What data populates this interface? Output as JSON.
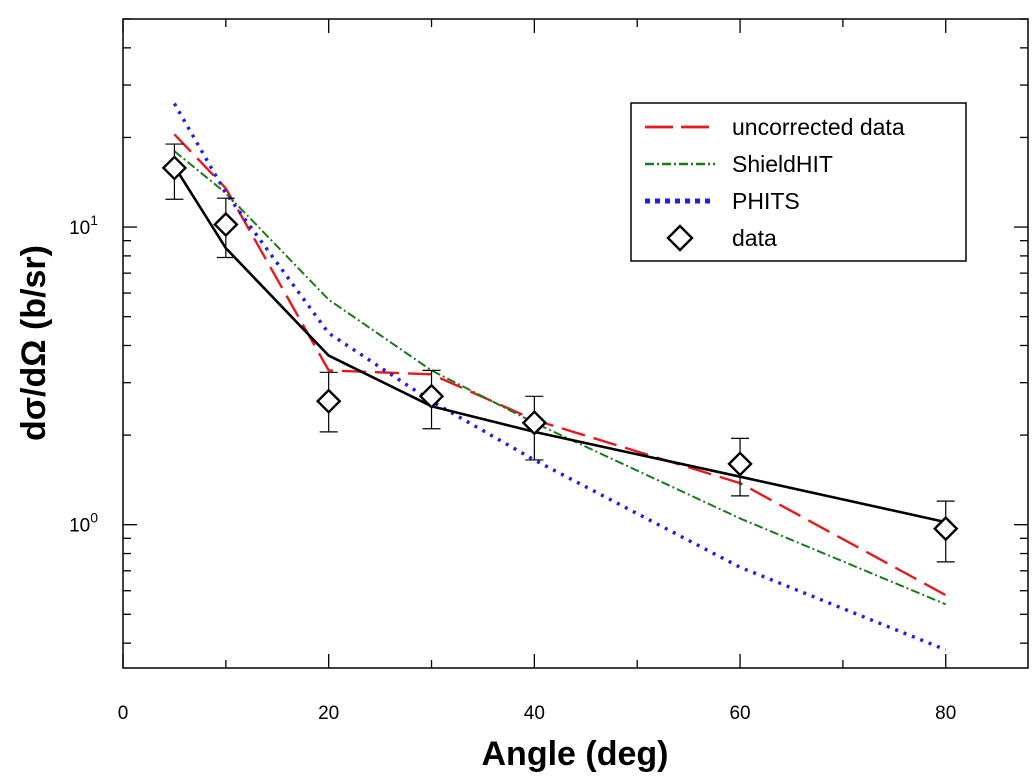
{
  "chart_data": {
    "type": "line",
    "xlabel": "Angle (deg)",
    "ylabel": "dσ/dΩ (b/sr)",
    "x_scale": "linear",
    "y_scale": "log",
    "xlim": [
      0,
      88
    ],
    "ylim": [
      0.33,
      50
    ],
    "x_ticks": [
      0,
      20,
      40,
      60,
      80
    ],
    "y_ticks": [
      {
        "value": 1,
        "base": "10",
        "exp": "0"
      },
      {
        "value": 10,
        "base": "10",
        "exp": "1"
      }
    ],
    "grid": false,
    "legend_position": "top-right",
    "series": [
      {
        "name": "uncorrected data",
        "style": "long-dash",
        "color": "#e41a1c",
        "x": [
          5,
          10,
          20,
          30,
          40,
          60,
          80
        ],
        "y": [
          20.5,
          13.5,
          3.3,
          3.2,
          2.25,
          1.38,
          0.58
        ]
      },
      {
        "name": "ShieldHIT",
        "style": "dash-dot",
        "color": "#1a7a1a",
        "x": [
          5,
          10,
          20,
          30,
          40,
          60,
          80
        ],
        "y": [
          18.0,
          13.0,
          5.7,
          3.3,
          2.2,
          1.05,
          0.54
        ]
      },
      {
        "name": "PHITS",
        "style": "dotted",
        "color": "#1f1fe6",
        "x": [
          5,
          10,
          20,
          30,
          40,
          60,
          80
        ],
        "y": [
          26.0,
          13.0,
          4.4,
          2.6,
          1.65,
          0.72,
          0.38
        ]
      },
      {
        "name": "",
        "style": "solid",
        "color": "#000000",
        "x": [
          5,
          10,
          20,
          30,
          40,
          60,
          80
        ],
        "y": [
          16.0,
          8.5,
          3.7,
          2.5,
          2.05,
          1.45,
          1.02
        ]
      }
    ],
    "data_points": {
      "name": "data",
      "marker": "diamond",
      "x": [
        5,
        10,
        20,
        30,
        40,
        60,
        80
      ],
      "y": [
        15.8,
        10.2,
        2.6,
        2.7,
        2.2,
        1.6,
        0.97
      ],
      "err_low": [
        12.4,
        7.9,
        2.05,
        2.1,
        1.65,
        1.25,
        0.75
      ],
      "err_high": [
        19.0,
        12.5,
        3.25,
        3.3,
        2.7,
        1.95,
        1.2
      ]
    }
  }
}
